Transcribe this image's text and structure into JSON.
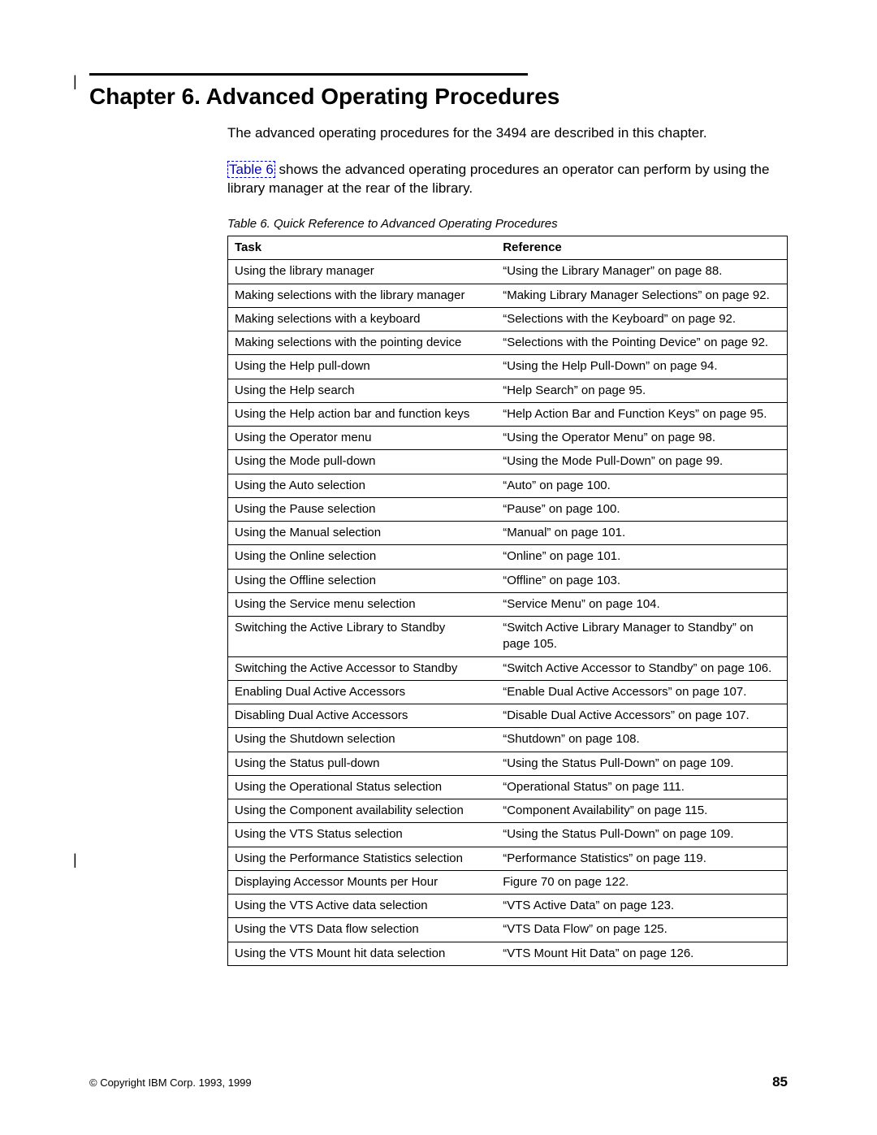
{
  "chapter": {
    "title": "Chapter 6. Advanced Operating Procedures",
    "intro1": "The advanced operating procedures for the 3494 are described in this chapter.",
    "intro2_link": "Table 6",
    "intro2_rest": " shows the advanced operating procedures an operator can perform by using the library manager at the rear of the library."
  },
  "table": {
    "caption": "Table 6. Quick Reference to Advanced Operating Procedures",
    "head_task": "Task",
    "head_ref": "Reference",
    "rows": [
      {
        "task": "Using the library manager",
        "ref": "“Using the Library Manager” on page 88."
      },
      {
        "task": "Making selections with the library manager",
        "ref": "“Making Library Manager Selections” on page 92."
      },
      {
        "task": "Making selections with a keyboard",
        "ref": "“Selections with the Keyboard” on page 92."
      },
      {
        "task": "Making selections with the pointing device",
        "ref": "“Selections with the Pointing Device” on page 92."
      },
      {
        "task": "Using the Help pull-down",
        "ref": "“Using the Help Pull-Down” on page 94."
      },
      {
        "task": "Using the Help search",
        "ref": "“Help Search” on page 95."
      },
      {
        "task": "Using the Help action bar and function keys",
        "ref": "“Help Action Bar and Function Keys” on page 95."
      },
      {
        "task": "Using the Operator menu",
        "ref": "“Using the Operator Menu” on page 98."
      },
      {
        "task": "Using the Mode pull-down",
        "ref": "“Using the Mode Pull-Down” on page 99."
      },
      {
        "task": "Using the Auto selection",
        "ref": "“Auto” on page 100."
      },
      {
        "task": "Using the Pause selection",
        "ref": "“Pause” on page 100."
      },
      {
        "task": "Using the Manual selection",
        "ref": "“Manual” on page 101."
      },
      {
        "task": "Using the Online selection",
        "ref": "“Online” on page 101."
      },
      {
        "task": "Using the Offline selection",
        "ref": "“Offline” on page 103."
      },
      {
        "task": "Using the Service menu selection",
        "ref": "“Service Menu” on page 104."
      },
      {
        "task": "Switching the Active Library to Standby",
        "ref": "“Switch Active Library Manager to Standby” on page 105."
      },
      {
        "task": "Switching the Active Accessor to Standby",
        "ref": "“Switch Active Accessor to Standby” on page 106."
      },
      {
        "task": "Enabling Dual Active Accessors",
        "ref": "“Enable Dual Active Accessors” on page 107."
      },
      {
        "task": "Disabling Dual Active Accessors",
        "ref": "“Disable Dual Active Accessors” on page 107."
      },
      {
        "task": "Using the Shutdown selection",
        "ref": "“Shutdown” on page 108."
      },
      {
        "task": "Using the Status pull-down",
        "ref": "“Using the Status Pull-Down” on page 109."
      },
      {
        "task": "Using the Operational Status selection",
        "ref": "“Operational Status” on page 111."
      },
      {
        "task": "Using the Component availability selection",
        "ref": "“Component Availability” on page 115."
      },
      {
        "task": "Using the VTS Status selection",
        "ref": "“Using the Status Pull-Down” on page 109."
      },
      {
        "task": "Using the Performance Statistics selection",
        "ref": "“Performance Statistics” on page 119."
      },
      {
        "task": "Displaying Accessor Mounts per Hour",
        "ref": "Figure 70 on page 122."
      },
      {
        "task": "Using the VTS Active data selection",
        "ref": "“VTS Active Data” on page 123."
      },
      {
        "task": "Using the VTS Data flow selection",
        "ref": "“VTS Data Flow” on page 125."
      },
      {
        "task": "Using the VTS Mount hit data selection",
        "ref": "“VTS Mount Hit Data” on page 126."
      }
    ]
  },
  "footer": {
    "copyright": "© Copyright IBM Corp. 1993, 1999",
    "page": "85"
  }
}
